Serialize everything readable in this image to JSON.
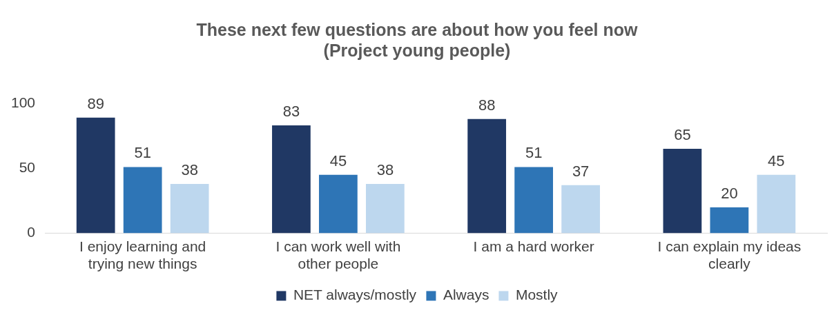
{
  "chart_data": {
    "type": "bar",
    "title": "These next few questions are about how you feel now\n(Project young people)",
    "categories": [
      "I enjoy learning and trying new things",
      "I can work well with other people",
      "I am a hard worker",
      "I can explain my ideas clearly"
    ],
    "series": [
      {
        "name": "NET always/mostly",
        "color": "#203864",
        "values": [
          89,
          83,
          88,
          65
        ]
      },
      {
        "name": "Always",
        "color": "#2e75b6",
        "values": [
          51,
          45,
          51,
          20
        ]
      },
      {
        "name": "Mostly",
        "color": "#bdd7ee",
        "values": [
          38,
          38,
          37,
          45
        ]
      }
    ],
    "ylim": [
      0,
      100
    ],
    "yticks": [
      0,
      50,
      100
    ],
    "grid": false,
    "legend": "bottom",
    "data_labels": true
  }
}
